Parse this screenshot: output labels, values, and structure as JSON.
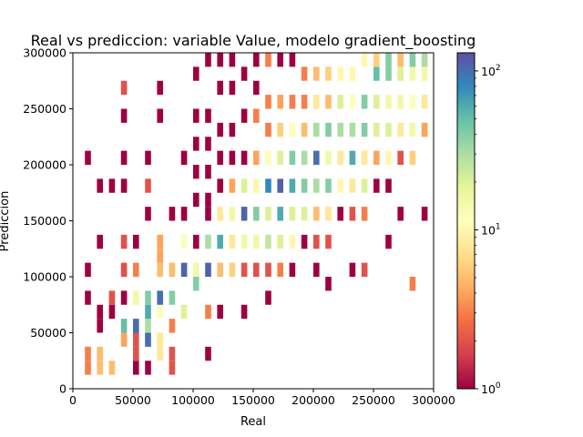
{
  "chart_data": {
    "type": "heatmap",
    "title": "Real vs prediccion: variable Value, modelo gradient_boosting",
    "xlabel": "Real",
    "ylabel": "Prediccion",
    "xlim": [
      0,
      300000
    ],
    "ylim": [
      0,
      300000
    ],
    "xticks": [
      0,
      50000,
      100000,
      150000,
      200000,
      250000,
      300000
    ],
    "yticks": [
      0,
      50000,
      100000,
      150000,
      200000,
      250000,
      300000
    ],
    "colorbar": {
      "scale": "log",
      "range": [
        1,
        130
      ],
      "ticks": [
        {
          "value": 1,
          "base": "10",
          "exp": "0"
        },
        {
          "value": 10,
          "base": "10",
          "exp": "1"
        },
        {
          "value": 100,
          "base": "10",
          "exp": "2"
        }
      ],
      "colormap": "Spectral"
    },
    "grid": false,
    "bin_size": [
      5000,
      12500
    ],
    "cells": [
      [
        10000,
        12500,
        3
      ],
      [
        10000,
        25000,
        3
      ],
      [
        10000,
        75000,
        1
      ],
      [
        10000,
        100000,
        1
      ],
      [
        10000,
        200000,
        1
      ],
      [
        20000,
        12500,
        5
      ],
      [
        20000,
        25000,
        5
      ],
      [
        20000,
        50000,
        1
      ],
      [
        20000,
        62500,
        1
      ],
      [
        20000,
        125000,
        1
      ],
      [
        20000,
        175000,
        1
      ],
      [
        30000,
        12500,
        5
      ],
      [
        30000,
        62500,
        1
      ],
      [
        30000,
        75000,
        2
      ],
      [
        30000,
        175000,
        1
      ],
      [
        40000,
        37500,
        4
      ],
      [
        40000,
        50000,
        50
      ],
      [
        40000,
        75000,
        1
      ],
      [
        40000,
        100000,
        2
      ],
      [
        40000,
        125000,
        2
      ],
      [
        40000,
        175000,
        1
      ],
      [
        40000,
        200000,
        1
      ],
      [
        40000,
        237500,
        1
      ],
      [
        40000,
        262500,
        2
      ],
      [
        50000,
        12500,
        1
      ],
      [
        50000,
        25000,
        2
      ],
      [
        50000,
        37500,
        2
      ],
      [
        50000,
        50000,
        100
      ],
      [
        50000,
        75000,
        15
      ],
      [
        50000,
        100000,
        3
      ],
      [
        50000,
        125000,
        1
      ],
      [
        60000,
        12500,
        1
      ],
      [
        60000,
        37500,
        100
      ],
      [
        60000,
        50000,
        30
      ],
      [
        60000,
        62500,
        60
      ],
      [
        60000,
        75000,
        40
      ],
      [
        60000,
        150000,
        1
      ],
      [
        60000,
        175000,
        2
      ],
      [
        60000,
        200000,
        1
      ],
      [
        70000,
        25000,
        8
      ],
      [
        70000,
        37500,
        8
      ],
      [
        70000,
        62500,
        12
      ],
      [
        70000,
        75000,
        100
      ],
      [
        70000,
        100000,
        5
      ],
      [
        70000,
        112500,
        4
      ],
      [
        70000,
        125000,
        4
      ],
      [
        70000,
        237500,
        1
      ],
      [
        70000,
        262500,
        1
      ],
      [
        80000,
        12500,
        2
      ],
      [
        80000,
        25000,
        2
      ],
      [
        80000,
        50000,
        3
      ],
      [
        80000,
        75000,
        40
      ],
      [
        80000,
        100000,
        5
      ],
      [
        80000,
        150000,
        1
      ],
      [
        90000,
        62500,
        20
      ],
      [
        90000,
        100000,
        110
      ],
      [
        90000,
        125000,
        12
      ],
      [
        90000,
        150000,
        1
      ],
      [
        90000,
        200000,
        1
      ],
      [
        100000,
        87500,
        40
      ],
      [
        100000,
        100000,
        15
      ],
      [
        100000,
        125000,
        1
      ],
      [
        100000,
        162500,
        1
      ],
      [
        100000,
        187500,
        1
      ],
      [
        100000,
        212500,
        1
      ],
      [
        100000,
        237500,
        1
      ],
      [
        100000,
        275000,
        1
      ],
      [
        110000,
        25000,
        1
      ],
      [
        110000,
        62500,
        3
      ],
      [
        110000,
        100000,
        110
      ],
      [
        110000,
        125000,
        30
      ],
      [
        110000,
        150000,
        1
      ],
      [
        110000,
        162500,
        1
      ],
      [
        110000,
        187500,
        1
      ],
      [
        110000,
        212500,
        1
      ],
      [
        110000,
        237500,
        1
      ],
      [
        110000,
        287500,
        1
      ],
      [
        120000,
        62500,
        1
      ],
      [
        120000,
        100000,
        5
      ],
      [
        120000,
        125000,
        60
      ],
      [
        120000,
        150000,
        8
      ],
      [
        120000,
        175000,
        1
      ],
      [
        120000,
        200000,
        1
      ],
      [
        120000,
        225000,
        1
      ],
      [
        120000,
        262500,
        1
      ],
      [
        120000,
        287500,
        1
      ],
      [
        130000,
        100000,
        6
      ],
      [
        130000,
        125000,
        8
      ],
      [
        130000,
        150000,
        15
      ],
      [
        130000,
        175000,
        4
      ],
      [
        130000,
        200000,
        1
      ],
      [
        130000,
        225000,
        1
      ],
      [
        130000,
        262500,
        1
      ],
      [
        130000,
        287500,
        1
      ],
      [
        140000,
        62500,
        1
      ],
      [
        140000,
        100000,
        2
      ],
      [
        140000,
        125000,
        15
      ],
      [
        140000,
        150000,
        110
      ],
      [
        140000,
        175000,
        20
      ],
      [
        140000,
        200000,
        1
      ],
      [
        140000,
        237500,
        1
      ],
      [
        140000,
        275000,
        1
      ],
      [
        150000,
        100000,
        2
      ],
      [
        150000,
        125000,
        15
      ],
      [
        150000,
        150000,
        40
      ],
      [
        150000,
        175000,
        10
      ],
      [
        150000,
        200000,
        4
      ],
      [
        150000,
        237500,
        3
      ],
      [
        150000,
        262500,
        1
      ],
      [
        150000,
        287500,
        1
      ],
      [
        160000,
        75000,
        1
      ],
      [
        160000,
        100000,
        2
      ],
      [
        160000,
        125000,
        25
      ],
      [
        160000,
        150000,
        20
      ],
      [
        160000,
        175000,
        80
      ],
      [
        160000,
        200000,
        12
      ],
      [
        160000,
        225000,
        3
      ],
      [
        160000,
        250000,
        3
      ],
      [
        160000,
        287500,
        3
      ],
      [
        170000,
        100000,
        3
      ],
      [
        170000,
        125000,
        20
      ],
      [
        170000,
        150000,
        60
      ],
      [
        170000,
        175000,
        110
      ],
      [
        170000,
        200000,
        20
      ],
      [
        170000,
        225000,
        6
      ],
      [
        170000,
        250000,
        4
      ],
      [
        170000,
        287500,
        1
      ],
      [
        180000,
        100000,
        1
      ],
      [
        180000,
        125000,
        10
      ],
      [
        180000,
        150000,
        20
      ],
      [
        180000,
        175000,
        60
      ],
      [
        180000,
        200000,
        40
      ],
      [
        180000,
        225000,
        12
      ],
      [
        180000,
        250000,
        3
      ],
      [
        180000,
        287500,
        1
      ],
      [
        190000,
        125000,
        1
      ],
      [
        190000,
        150000,
        20
      ],
      [
        190000,
        175000,
        40
      ],
      [
        190000,
        200000,
        30
      ],
      [
        190000,
        225000,
        5
      ],
      [
        190000,
        250000,
        3
      ],
      [
        190000,
        275000,
        3
      ],
      [
        200000,
        100000,
        1
      ],
      [
        200000,
        125000,
        2
      ],
      [
        200000,
        150000,
        5
      ],
      [
        200000,
        175000,
        30
      ],
      [
        200000,
        200000,
        100
      ],
      [
        200000,
        225000,
        30
      ],
      [
        200000,
        250000,
        8
      ],
      [
        200000,
        275000,
        5
      ],
      [
        210000,
        87500,
        1
      ],
      [
        210000,
        125000,
        2
      ],
      [
        210000,
        150000,
        8
      ],
      [
        210000,
        175000,
        40
      ],
      [
        210000,
        200000,
        15
      ],
      [
        210000,
        225000,
        40
      ],
      [
        210000,
        250000,
        5
      ],
      [
        210000,
        275000,
        6
      ],
      [
        220000,
        150000,
        1
      ],
      [
        220000,
        175000,
        10
      ],
      [
        220000,
        200000,
        8
      ],
      [
        220000,
        225000,
        30
      ],
      [
        220000,
        250000,
        20
      ],
      [
        220000,
        275000,
        10
      ],
      [
        230000,
        100000,
        1
      ],
      [
        230000,
        150000,
        2
      ],
      [
        230000,
        175000,
        8
      ],
      [
        230000,
        200000,
        60
      ],
      [
        230000,
        225000,
        30
      ],
      [
        230000,
        250000,
        12
      ],
      [
        230000,
        275000,
        10
      ],
      [
        240000,
        100000,
        2
      ],
      [
        240000,
        150000,
        3
      ],
      [
        240000,
        175000,
        20
      ],
      [
        240000,
        200000,
        8
      ],
      [
        240000,
        225000,
        40
      ],
      [
        240000,
        250000,
        40
      ],
      [
        240000,
        287500,
        10
      ],
      [
        250000,
        175000,
        1
      ],
      [
        250000,
        200000,
        4
      ],
      [
        250000,
        225000,
        20
      ],
      [
        250000,
        250000,
        20
      ],
      [
        250000,
        275000,
        50
      ],
      [
        250000,
        287500,
        6
      ],
      [
        260000,
        125000,
        1
      ],
      [
        260000,
        175000,
        1
      ],
      [
        260000,
        200000,
        10
      ],
      [
        260000,
        225000,
        20
      ],
      [
        260000,
        250000,
        15
      ],
      [
        260000,
        275000,
        40
      ],
      [
        260000,
        287500,
        40
      ],
      [
        270000,
        150000,
        1
      ],
      [
        270000,
        200000,
        2
      ],
      [
        270000,
        225000,
        8
      ],
      [
        270000,
        250000,
        15
      ],
      [
        270000,
        275000,
        20
      ],
      [
        270000,
        287500,
        5
      ],
      [
        280000,
        87500,
        3
      ],
      [
        280000,
        200000,
        6
      ],
      [
        280000,
        225000,
        15
      ],
      [
        280000,
        250000,
        12
      ],
      [
        280000,
        275000,
        15
      ],
      [
        280000,
        287500,
        40
      ],
      [
        290000,
        150000,
        1
      ],
      [
        290000,
        225000,
        4
      ],
      [
        290000,
        250000,
        8
      ],
      [
        290000,
        275000,
        15
      ],
      [
        290000,
        287500,
        30
      ]
    ]
  }
}
